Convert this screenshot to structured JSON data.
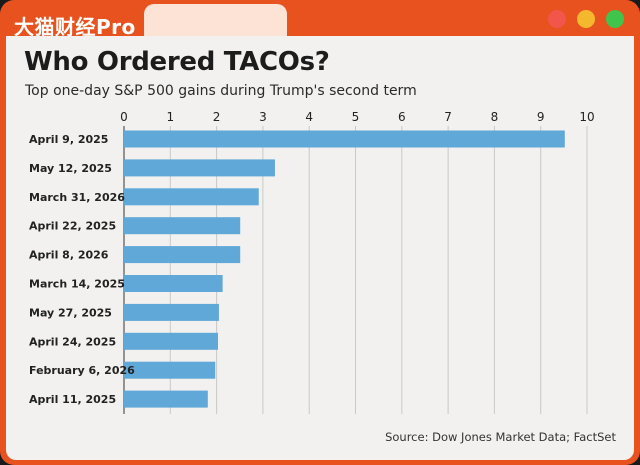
{
  "brand": {
    "name": "大猫财经Pro"
  },
  "window_controls": {
    "close_color": "#f2564b",
    "minimize_color": "#f4b82f",
    "maximize_color": "#41c44c"
  },
  "chart_data": {
    "type": "bar",
    "orientation": "horizontal",
    "title": "Who Ordered TACOs?",
    "subtitle": "Top one-day S&P 500 gains during Trump's second term",
    "source": "Source: Dow Jones Market Data; FactSet",
    "categories": [
      "April 9, 2025",
      "May 12, 2025",
      "March 31, 2026",
      "April 22, 2025",
      "April 8, 2026",
      "March 14, 2025",
      "May 27, 2025",
      "April 24, 2025",
      "February 6, 2026",
      "April 11, 2025"
    ],
    "values": [
      9.52,
      3.26,
      2.91,
      2.51,
      2.51,
      2.13,
      2.05,
      2.03,
      1.97,
      1.81
    ],
    "xlim": [
      0,
      10
    ],
    "xticks": [
      0,
      1,
      2,
      3,
      4,
      5,
      6,
      7,
      8,
      9,
      10
    ],
    "grid": true,
    "bar_color": "#5fa8d8"
  }
}
